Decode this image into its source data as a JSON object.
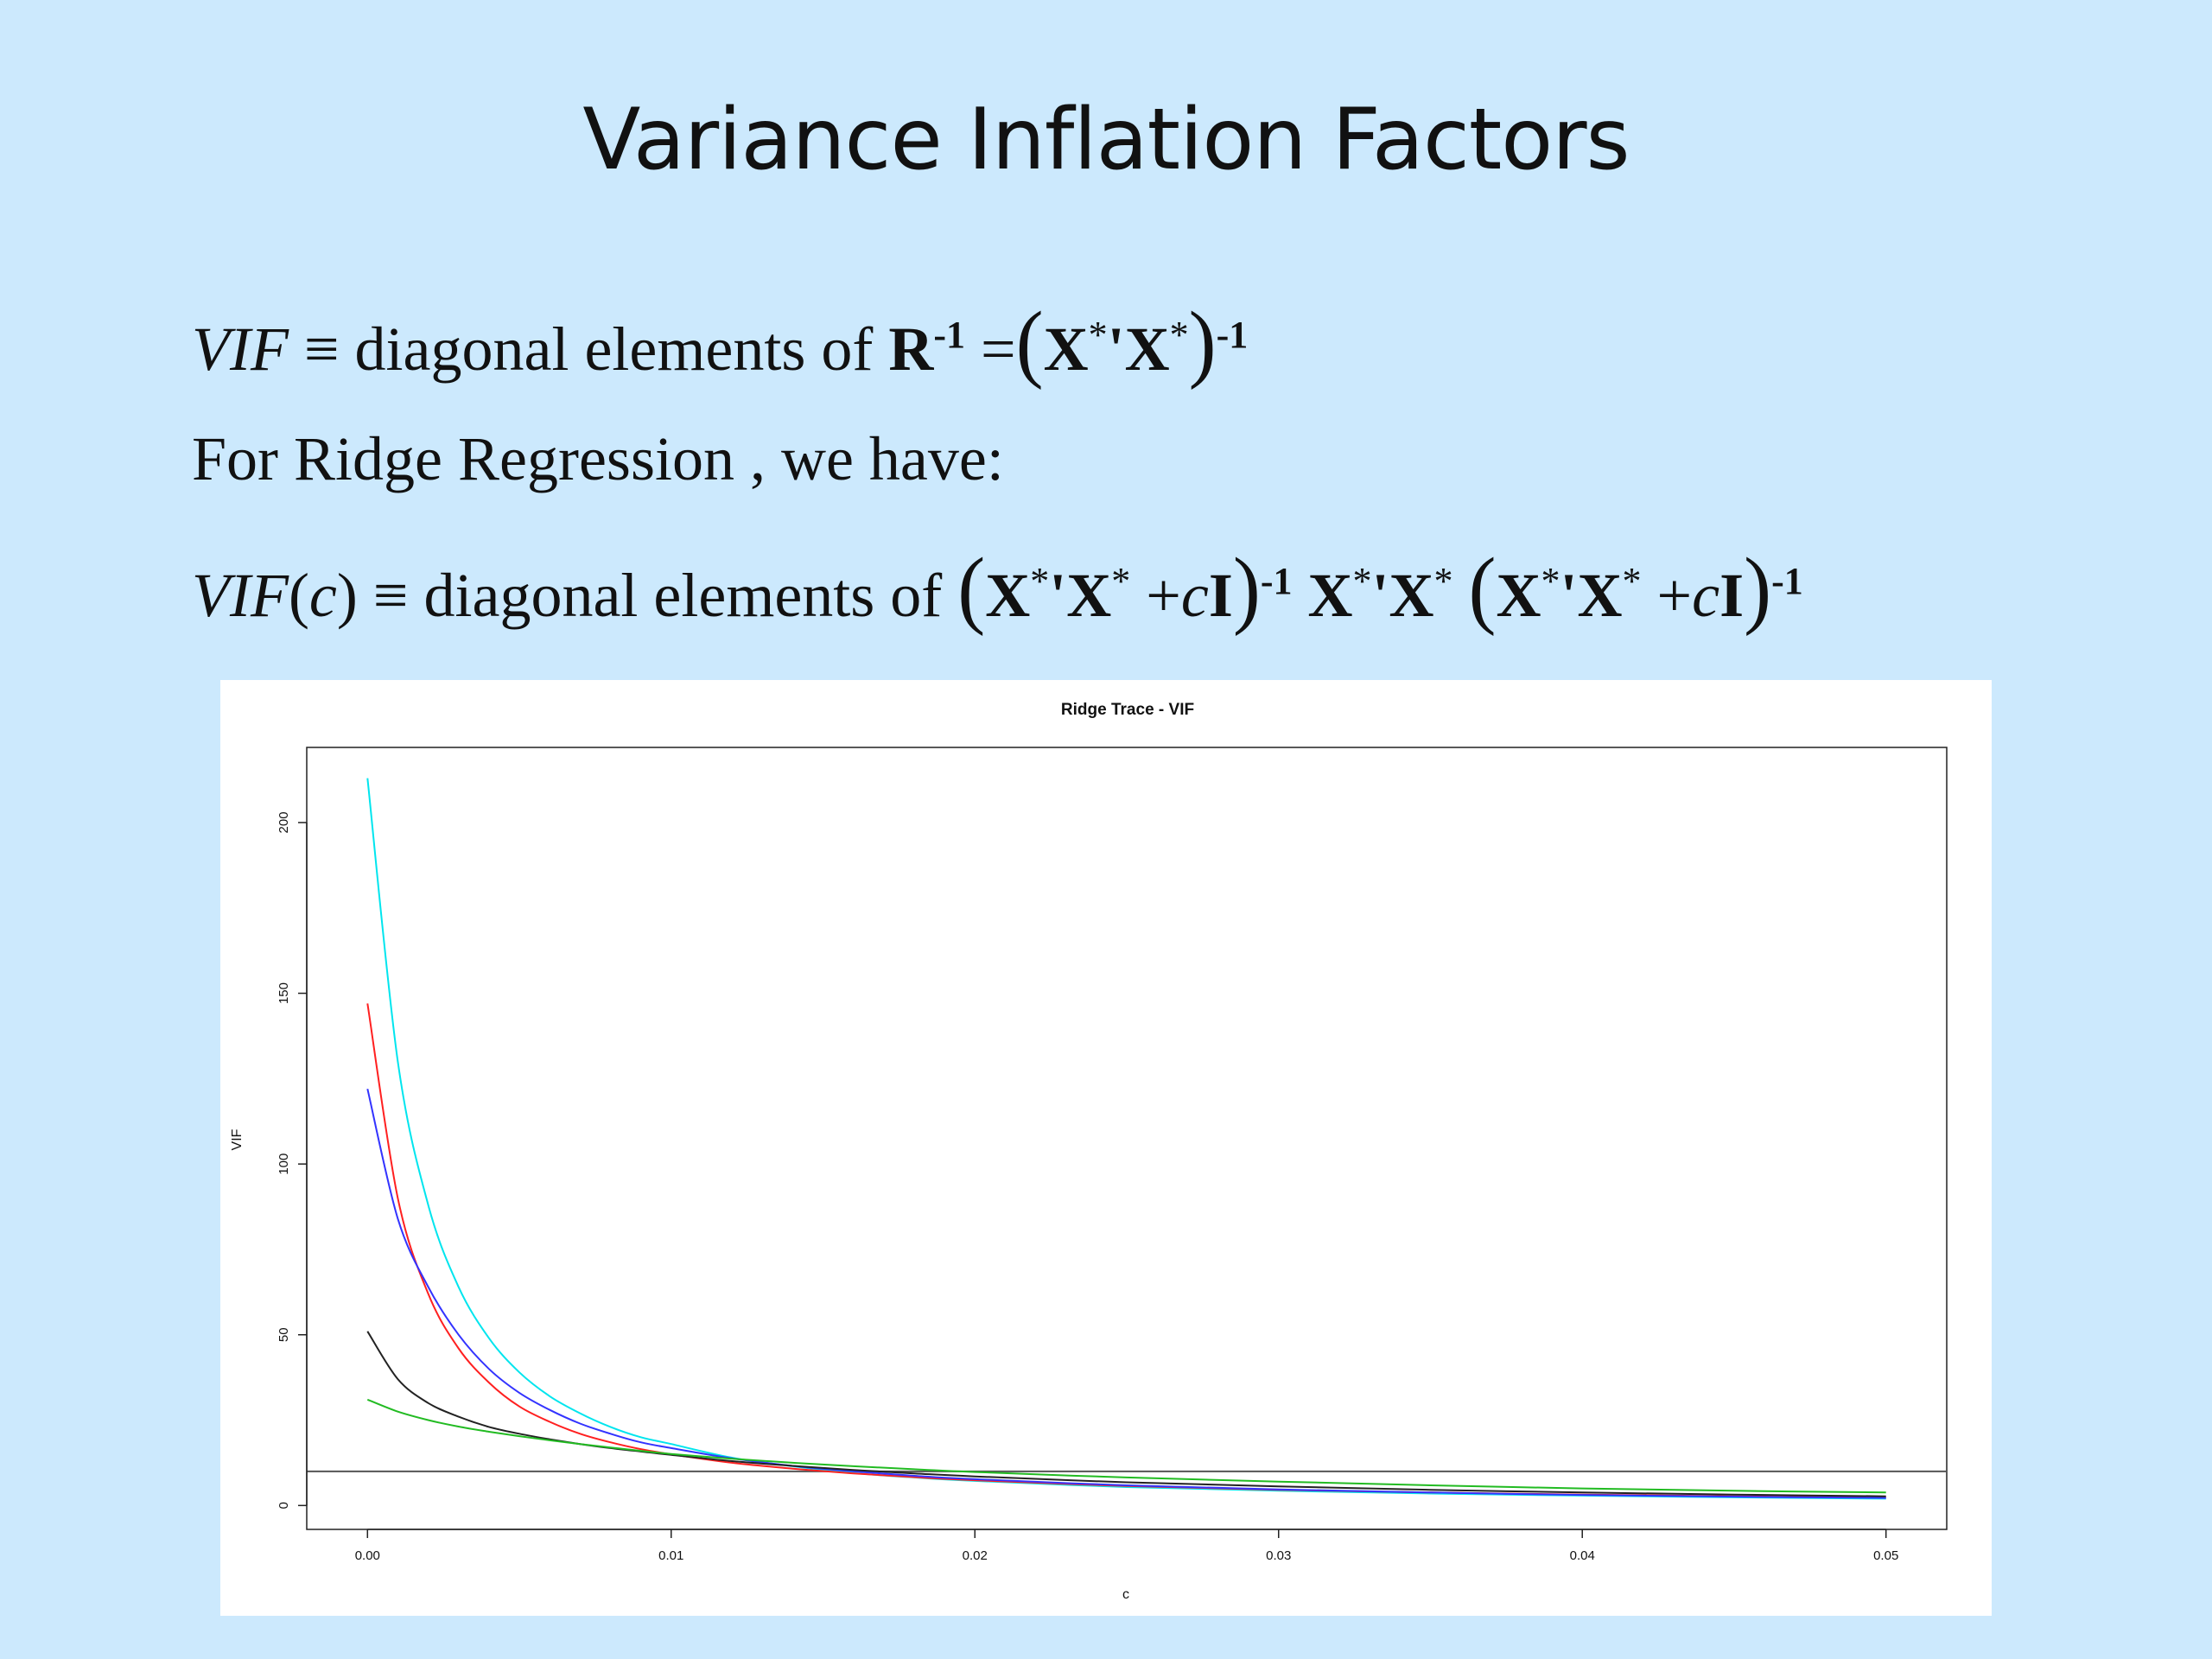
{
  "slide": {
    "title": "Variance Inflation Factors"
  },
  "equations": {
    "line1": {
      "vif": "VIF",
      "equiv": "≡",
      "text": "diagonal elements of",
      "R": "R",
      "inv": "-1",
      "eq": "=",
      "lparen": "(",
      "X1": "X",
      "star1": "*",
      "prime": "'",
      "X2": "X",
      "star2": "*",
      "rparen": ")",
      "inv2": "-1"
    },
    "line2": {
      "text": "For Ridge Regression , we have:"
    },
    "line3": {
      "vif": "VIF",
      "arg_open": "(",
      "c": "c",
      "arg_close": ")",
      "equiv": "≡",
      "text": "diagonal elements of",
      "lparen": "(",
      "X": "X",
      "star": "*",
      "prime": "'",
      "plus": "+",
      "I": "I",
      "rparen": ")",
      "inv": "-1"
    }
  },
  "chart_data": {
    "type": "line",
    "title": "Ridge Trace - VIF",
    "xlabel": "c",
    "ylabel": "VIF",
    "xlim": [
      -0.002,
      0.052
    ],
    "ylim": [
      -7,
      222
    ],
    "x_ticks": [
      0.0,
      0.01,
      0.02,
      0.03,
      0.04,
      0.05
    ],
    "x_tick_labels": [
      "0.00",
      "0.01",
      "0.02",
      "0.03",
      "0.04",
      "0.05"
    ],
    "y_ticks": [
      0,
      50,
      100,
      150,
      200
    ],
    "y_tick_labels": [
      "0",
      "50",
      "100",
      "150",
      "200"
    ],
    "reference_line_y": 10,
    "colors": {
      "cyan": "#00e5ee",
      "red": "#ff2020",
      "blue": "#3333ff",
      "black": "#222222",
      "green": "#22bb22",
      "reference": "#555555"
    },
    "x": [
      0,
      0.001,
      0.002,
      0.003,
      0.004,
      0.005,
      0.006,
      0.007,
      0.008,
      0.009,
      0.01,
      0.012,
      0.014,
      0.016,
      0.018,
      0.02,
      0.025,
      0.03,
      0.035,
      0.04,
      0.045,
      0.05
    ],
    "series": [
      {
        "color_key": "cyan",
        "values": [
          213,
          130,
          88,
          64,
          49,
          39,
          32,
          27,
          23,
          20,
          18,
          14,
          11.5,
          9.5,
          8.2,
          7.2,
          5.4,
          4.3,
          3.5,
          2.9,
          2.4,
          2.0
        ]
      },
      {
        "color_key": "red",
        "values": [
          147,
          90,
          62,
          46,
          36,
          29,
          24.5,
          21,
          18.5,
          16.5,
          15,
          12.5,
          10.8,
          9.4,
          8.3,
          7.4,
          5.7,
          4.6,
          3.8,
          3.2,
          2.7,
          2.3
        ]
      },
      {
        "color_key": "blue",
        "values": [
          122,
          84,
          64,
          50,
          40,
          33,
          28,
          24,
          21,
          18.5,
          16.8,
          13.8,
          11.6,
          10.0,
          8.7,
          7.7,
          5.9,
          4.7,
          3.8,
          3.1,
          2.6,
          2.2
        ]
      },
      {
        "color_key": "black",
        "values": [
          51,
          37,
          30,
          26,
          23,
          21,
          19.4,
          18,
          16.8,
          15.8,
          14.8,
          13.0,
          11.6,
          10.4,
          9.4,
          8.5,
          6.8,
          5.6,
          4.6,
          3.8,
          3.2,
          2.7
        ]
      },
      {
        "color_key": "green",
        "values": [
          31,
          27.5,
          25,
          23.1,
          21.6,
          20.3,
          19.1,
          18.0,
          17.0,
          16.0,
          15.1,
          13.7,
          12.5,
          11.5,
          10.6,
          9.8,
          8.2,
          7.0,
          5.9,
          5.0,
          4.3,
          3.8
        ]
      }
    ]
  }
}
